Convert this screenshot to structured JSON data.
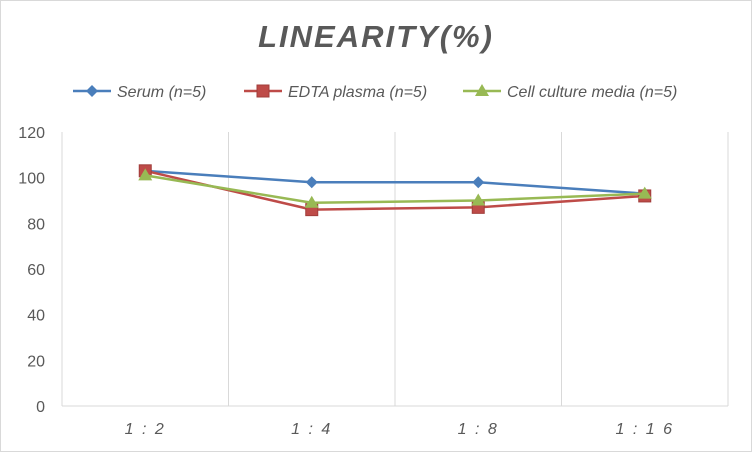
{
  "chart_data": {
    "type": "line",
    "title": "LINEARITY(%)",
    "xlabel": "",
    "ylabel": "",
    "categories": [
      "1:2",
      "1:4",
      "1:8",
      "1:16"
    ],
    "ylim": [
      0,
      120
    ],
    "yticks": [
      0,
      20,
      40,
      60,
      80,
      100,
      120
    ],
    "grid": "vertical",
    "legend_position": "top",
    "series": [
      {
        "name": "Serum (n=5)",
        "values": [
          103,
          98,
          98,
          93
        ],
        "color": "#4a7ebb",
        "marker": "diamond"
      },
      {
        "name": "EDTA plasma (n=5)",
        "values": [
          103,
          86,
          87,
          92
        ],
        "color": "#be4b48",
        "marker": "square"
      },
      {
        "name": "Cell culture media (n=5)",
        "values": [
          101,
          89,
          90,
          93
        ],
        "color": "#98b954",
        "marker": "triangle"
      }
    ]
  }
}
